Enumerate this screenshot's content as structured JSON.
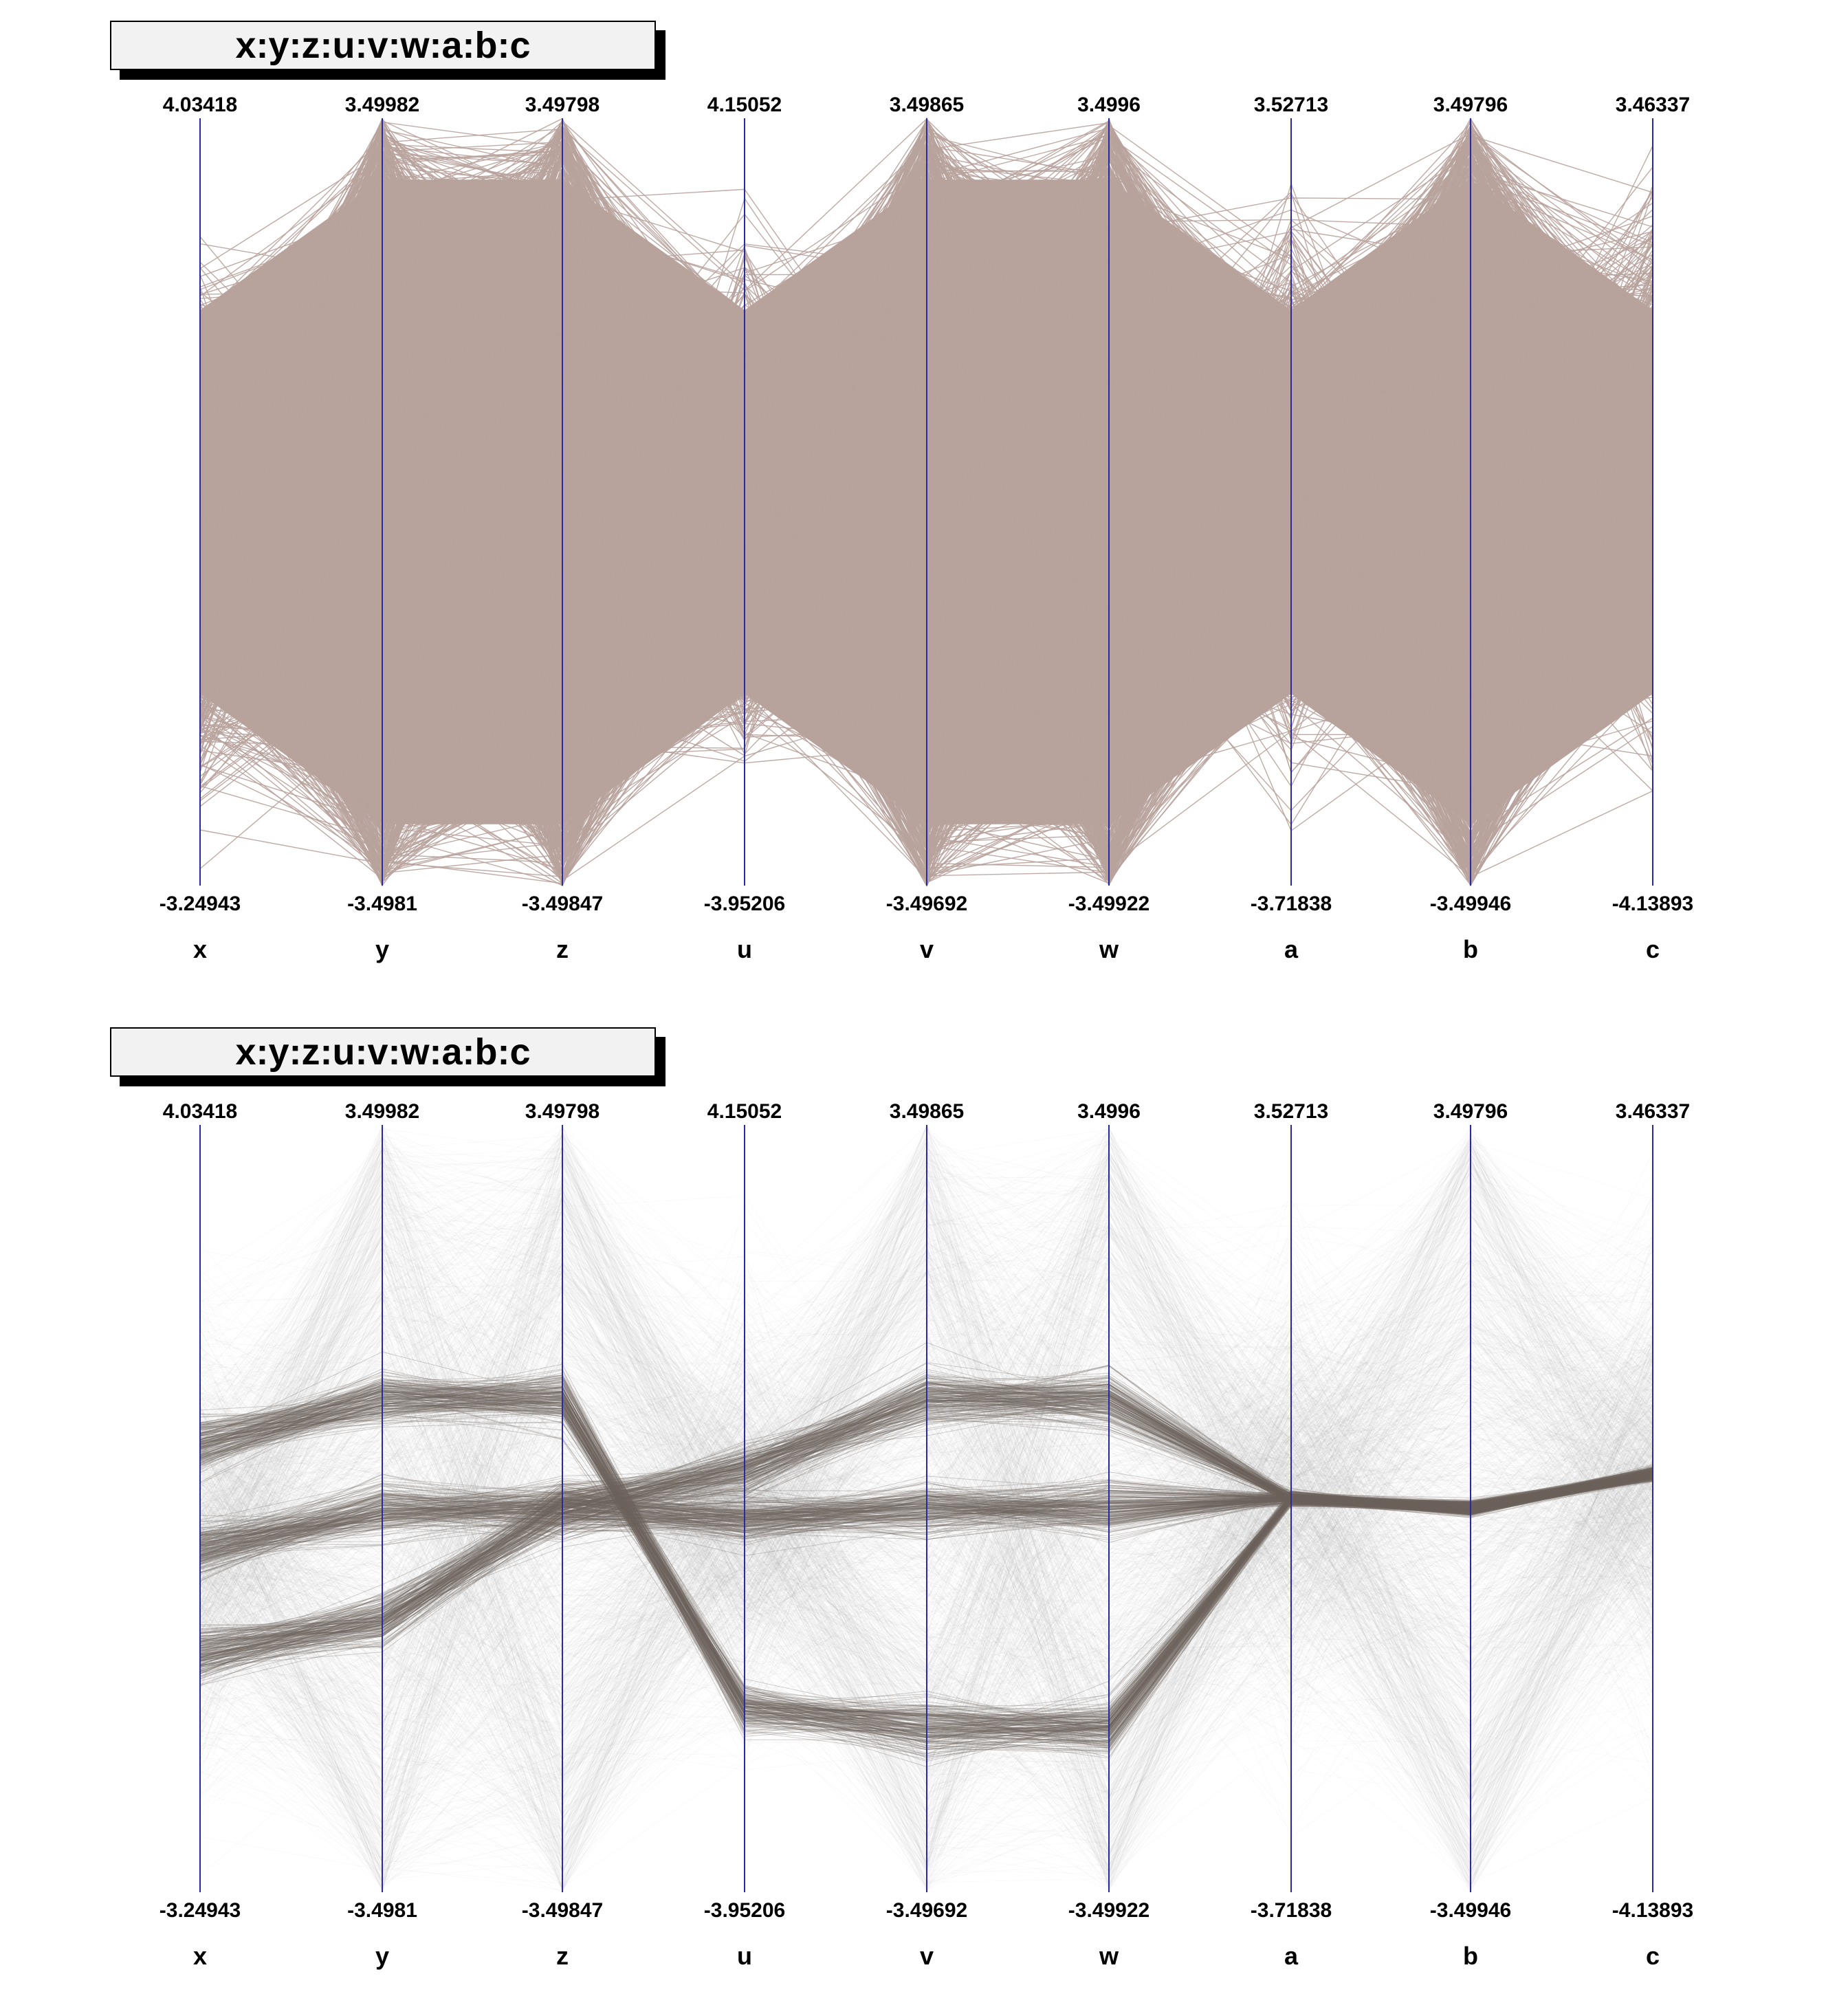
{
  "chart_data": [
    {
      "type": "parallel-coordinates",
      "title": "x:y:z:u:v:w:a:b:c",
      "line_color": "#b8a29c",
      "axis_color": "#2a2aa0",
      "axes": [
        {
          "name": "x",
          "max": "4.03418",
          "min": "-3.24943"
        },
        {
          "name": "y",
          "max": "3.49982",
          "min": "-3.4981"
        },
        {
          "name": "z",
          "max": "3.49798",
          "min": "-3.49847"
        },
        {
          "name": "u",
          "max": "4.15052",
          "min": "-3.95206"
        },
        {
          "name": "v",
          "max": "3.49865",
          "min": "-3.49692"
        },
        {
          "name": "w",
          "max": "3.4996",
          "min": "-3.49922"
        },
        {
          "name": "a",
          "max": "3.52713",
          "min": "-3.71838"
        },
        {
          "name": "b",
          "max": "3.49796",
          "min": "-3.49946"
        },
        {
          "name": "c",
          "max": "3.46337",
          "min": "-4.13893"
        }
      ],
      "highlight": false
    },
    {
      "type": "parallel-coordinates",
      "title": "x:y:z:u:v:w:a:b:c",
      "line_color": "#9a9a9a",
      "highlight_color": "#6e625c",
      "axis_color": "#2a2aa0",
      "axes": [
        {
          "name": "x",
          "max": "4.03418",
          "min": "-3.24943"
        },
        {
          "name": "y",
          "max": "3.49982",
          "min": "-3.4981"
        },
        {
          "name": "z",
          "max": "3.49798",
          "min": "-3.49847"
        },
        {
          "name": "u",
          "max": "4.15052",
          "min": "-3.95206"
        },
        {
          "name": "v",
          "max": "3.49865",
          "min": "-3.49692"
        },
        {
          "name": "w",
          "max": "3.4996",
          "min": "-3.49922"
        },
        {
          "name": "a",
          "max": "3.52713",
          "min": "-3.71838"
        },
        {
          "name": "b",
          "max": "3.49796",
          "min": "-3.49946"
        },
        {
          "name": "c",
          "max": "3.46337",
          "min": "-4.13893"
        }
      ],
      "clusters": [
        {
          "x": 1,
          "y": 1,
          "z": 1,
          "u": -2,
          "v": -2,
          "w": -2,
          "a": 0,
          "b": 0,
          "c": 0
        },
        {
          "x": 0,
          "y": 0,
          "z": 0,
          "u": 0.5,
          "v": 1,
          "w": 1,
          "a": 0,
          "b": 0,
          "c": 0
        },
        {
          "x": -1,
          "y": -1,
          "z": 0,
          "u": 0,
          "v": 0,
          "w": 0,
          "a": 0,
          "b": 0,
          "c": 0
        }
      ],
      "highlight": true
    }
  ]
}
